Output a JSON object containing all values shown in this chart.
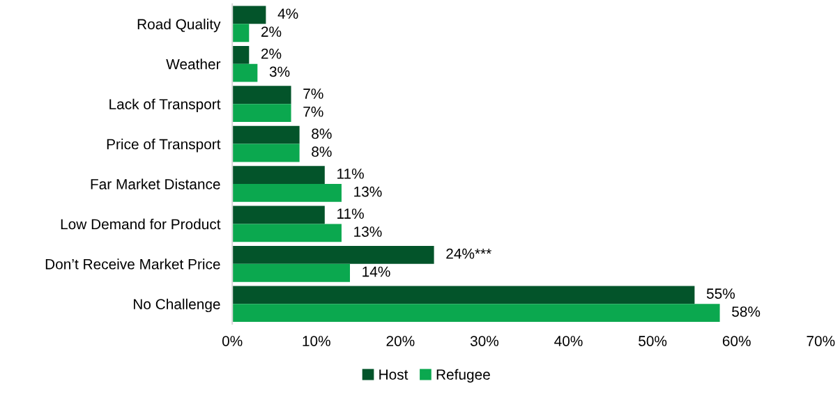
{
  "chart_data": {
    "type": "bar",
    "orientation": "horizontal",
    "categories": [
      "Road Quality",
      "Weather",
      "Lack of Transport",
      "Price of Transport",
      "Far Market Distance",
      "Low Demand for Product",
      "Don’t Receive Market Price",
      "No Challenge"
    ],
    "series": [
      {
        "name": "Host",
        "color": "#03542a",
        "values": [
          4,
          2,
          7,
          8,
          11,
          11,
          24,
          55
        ],
        "value_labels": [
          "4%",
          "2%",
          "7%",
          "8%",
          "11%",
          "11%",
          "24%***",
          "55%"
        ]
      },
      {
        "name": "Refugee",
        "color": "#0ba84f",
        "values": [
          2,
          3,
          7,
          8,
          13,
          13,
          14,
          58
        ],
        "value_labels": [
          "2%",
          "3%",
          "7%",
          "8%",
          "13%",
          "13%",
          "14%",
          "58%"
        ]
      }
    ],
    "xlim": [
      0,
      70
    ],
    "xticks": [
      {
        "value": 0,
        "label": "0%"
      },
      {
        "value": 10,
        "label": "10%"
      },
      {
        "value": 20,
        "label": "20%"
      },
      {
        "value": 30,
        "label": "30%"
      },
      {
        "value": 40,
        "label": "40%"
      },
      {
        "value": 50,
        "label": "50%"
      },
      {
        "value": 60,
        "label": "60%"
      },
      {
        "value": 70,
        "label": "70%"
      }
    ],
    "legend": "bottom",
    "grid": false
  }
}
